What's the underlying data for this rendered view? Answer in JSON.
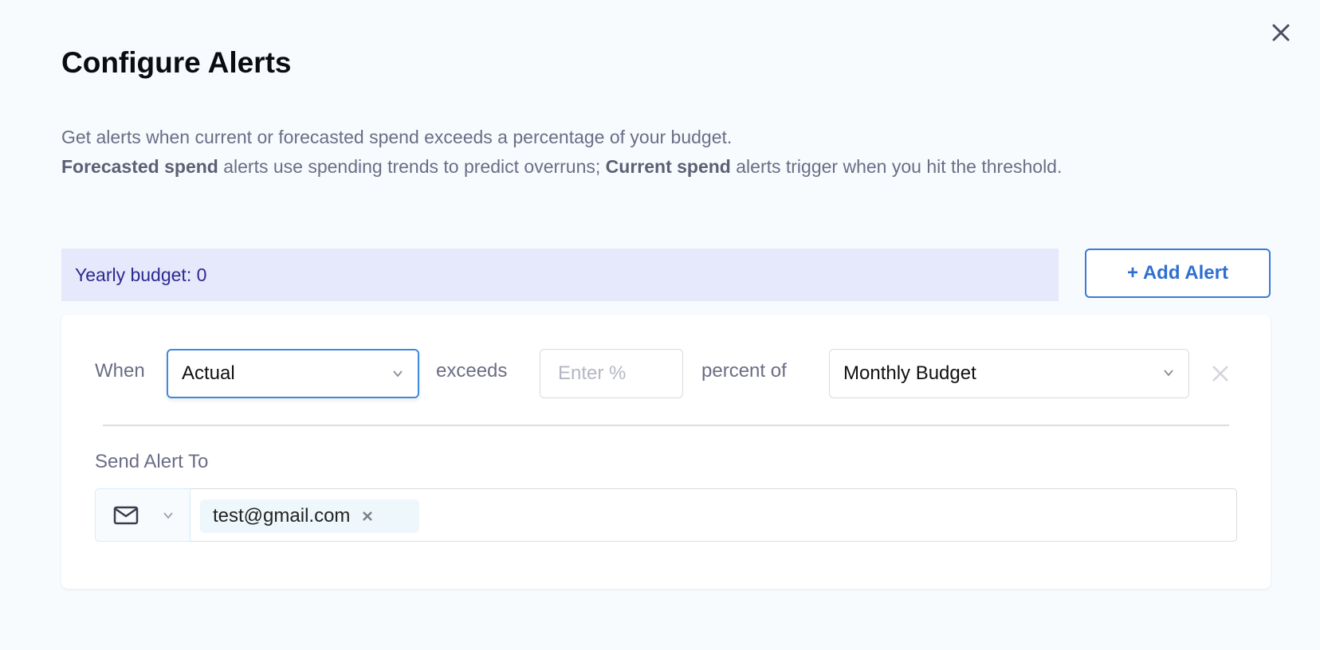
{
  "dialog": {
    "title": "Configure Alerts",
    "description": {
      "line1": "Get alerts when current or forecasted spend exceeds a percentage of your budget.",
      "bold1": "Forecasted spend",
      "text1": " alerts use spending trends to predict overruns; ",
      "bold2": "Current spend",
      "text2": " alerts trigger when you hit the threshold."
    }
  },
  "budget": {
    "label": "Yearly budget: 0"
  },
  "add_alert": {
    "label": "+ Add Alert"
  },
  "alert": {
    "when_label": "When",
    "type_value": "Actual",
    "exceeds_label": "exceeds",
    "percent_placeholder": "Enter %",
    "percent_value": "",
    "percent_of_label": "percent of",
    "budget_value": "Monthly Budget",
    "send_label": "Send Alert To",
    "channel_icon": "mail-icon",
    "recipients": [
      "test@gmail.com"
    ]
  },
  "colors": {
    "accent": "#3a7bd5",
    "budget_bg": "#e6e8fb",
    "budget_text": "#2c2a8f"
  }
}
